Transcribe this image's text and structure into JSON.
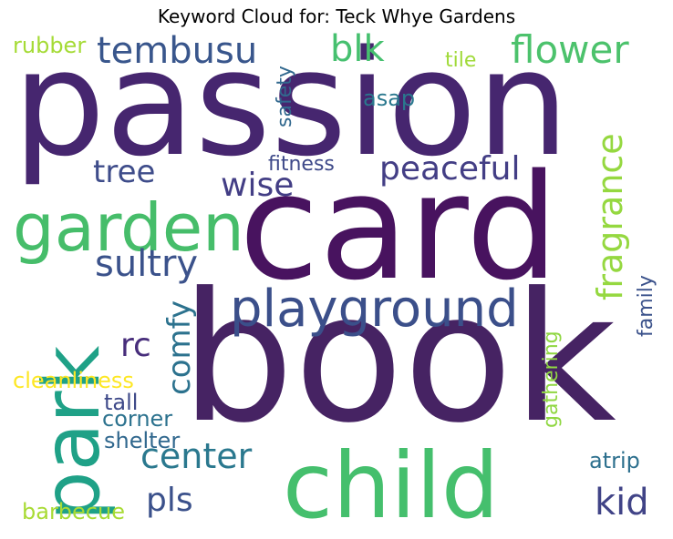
{
  "title": "Keyword Cloud for: Teck Whye Gardens",
  "words": [
    {
      "text": "passion",
      "color": "#46266f"
    },
    {
      "text": "card",
      "color": "#48135f"
    },
    {
      "text": "book",
      "color": "#462363"
    },
    {
      "text": "child",
      "color": "#45bf6d"
    },
    {
      "text": "park",
      "color": "#1fa187"
    },
    {
      "text": "garden",
      "color": "#46bd6a"
    },
    {
      "text": "playground",
      "color": "#3b4f8a"
    },
    {
      "text": "tembusu",
      "color": "#39568c"
    },
    {
      "text": "blk",
      "color": "#46c06f"
    },
    {
      "text": "flower",
      "color": "#4cc26c"
    },
    {
      "text": "peaceful",
      "color": "#433e85"
    },
    {
      "text": "tree",
      "color": "#3e4c8a"
    },
    {
      "text": "wise",
      "color": "#433e85"
    },
    {
      "text": "sultry",
      "color": "#3b528b"
    },
    {
      "text": "fragrance",
      "color": "#95d840"
    },
    {
      "text": "comfy",
      "color": "#2c728e"
    },
    {
      "text": "rc",
      "color": "#472d7b"
    },
    {
      "text": "center",
      "color": "#2a788e"
    },
    {
      "text": "pls",
      "color": "#3b518b"
    },
    {
      "text": "kid",
      "color": "#414487"
    },
    {
      "text": "rubber",
      "color": "#a5db36"
    },
    {
      "text": "safety",
      "color": "#31688e"
    },
    {
      "text": "tile",
      "color": "#a0da39"
    },
    {
      "text": "asap",
      "color": "#2a788e"
    },
    {
      "text": "fitness",
      "color": "#3e4989"
    },
    {
      "text": "family",
      "color": "#3b528b"
    },
    {
      "text": "gathering",
      "color": "#90d743"
    },
    {
      "text": "cleanliness",
      "color": "#fde725"
    },
    {
      "text": "tall",
      "color": "#3e4989"
    },
    {
      "text": "corner",
      "color": "#2c728e"
    },
    {
      "text": "shelter",
      "color": "#31688e"
    },
    {
      "text": "atrip",
      "color": "#2d708e"
    },
    {
      "text": "barbecue",
      "color": "#a8db34"
    }
  ]
}
